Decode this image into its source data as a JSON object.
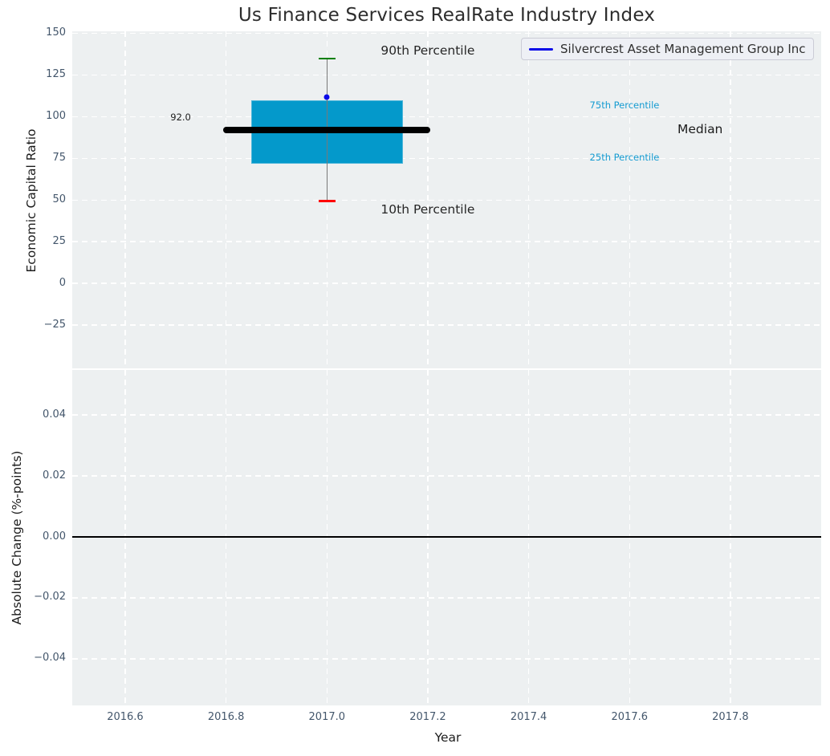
{
  "title": "Us Finance Services RealRate Industry Index",
  "legend": {
    "label": "Silvercrest Asset Management Group Inc",
    "line_color": "#0a0ae8",
    "position": "upper right"
  },
  "colors": {
    "axes_background": "#edf0f1",
    "grid": "#ffffff",
    "box_fill": "#0499cb",
    "box_edge": "#bfe2f0",
    "median_line": "#000000",
    "whisker": "#787878",
    "cap_90th": "#008000",
    "cap_10th": "#ff0000",
    "company_marker": "#0a0ae8",
    "tick_label": "#43566b",
    "percentile_text": "#149bd1",
    "dark_text": "#262626",
    "zero_line": "#000000"
  },
  "chart_data": [
    {
      "type": "boxplot",
      "title": "Us Finance Services RealRate Industry Index",
      "ylabel": "Economic Capital Ratio",
      "xlabel": "Year",
      "xlim": [
        2016.495,
        2017.98
      ],
      "ylim": [
        -51.0,
        151.3
      ],
      "xticks": [
        2016.6,
        2016.8,
        2017.0,
        2017.2,
        2017.4,
        2017.6,
        2017.8
      ],
      "xtick_labels": [
        "2016.6",
        "2016.8",
        "2017.0",
        "2017.2",
        "2017.4",
        "2017.6",
        "2017.8"
      ],
      "show_xtick_labels": false,
      "yticks": [
        150,
        125,
        100,
        75,
        50,
        25,
        0,
        -25
      ],
      "ytick_labels": [
        "150",
        "125",
        "100",
        "75",
        "50",
        "25",
        "0",
        "−25"
      ],
      "grid": "white-dashed",
      "series": [
        {
          "name": "industry-box",
          "x": 2017.0,
          "p10": 49.5,
          "p25": 72.0,
          "median": 92.0,
          "p75": 110.0,
          "p90": 135.0,
          "box_half_width": 0.15,
          "median_half_width": 0.205,
          "cap_half_width": 0.017
        }
      ],
      "company_point": {
        "name": "Silvercrest Asset Management Group Inc",
        "x": 2017.0,
        "y": 112.0
      },
      "median_value_label": "92.0",
      "annotations": [
        {
          "text": "90th Percentile",
          "x": 2017.2,
          "y": 139.5,
          "color": "#262626",
          "size": 15.5
        },
        {
          "text": "75th Percentile",
          "x": 2017.59,
          "y": 107.0,
          "color": "#149bd1",
          "size": 11.5
        },
        {
          "text": "Median",
          "x": 2017.74,
          "y": 92.5,
          "color": "#1c1c1c",
          "size": 15.5
        },
        {
          "text": "25th Percentile",
          "x": 2017.59,
          "y": 75.5,
          "color": "#149bd1",
          "size": 11.5
        },
        {
          "text": "10th Percentile",
          "x": 2017.2,
          "y": 44.5,
          "color": "#262626",
          "size": 15.5
        },
        {
          "text": "92.0",
          "x": 2016.71,
          "y": 100.0,
          "color": "#1c1c1c",
          "size": 11.5
        }
      ]
    },
    {
      "type": "line",
      "ylabel": "Absolute Change (%-points)",
      "xlabel": "Year",
      "xlim": [
        2016.495,
        2017.98
      ],
      "ylim": [
        -0.0553,
        0.0548
      ],
      "xticks": [
        2016.6,
        2016.8,
        2017.0,
        2017.2,
        2017.4,
        2017.6,
        2017.8
      ],
      "xtick_labels": [
        "2016.6",
        "2016.8",
        "2017.0",
        "2017.2",
        "2017.4",
        "2017.6",
        "2017.8"
      ],
      "show_xtick_labels": true,
      "yticks": [
        0.04,
        0.02,
        0.0,
        -0.02,
        -0.04
      ],
      "ytick_labels": [
        "0.04",
        "0.02",
        "0.00",
        "−0.02",
        "−0.04"
      ],
      "grid": "white-dashed",
      "hline": 0.0
    }
  ]
}
